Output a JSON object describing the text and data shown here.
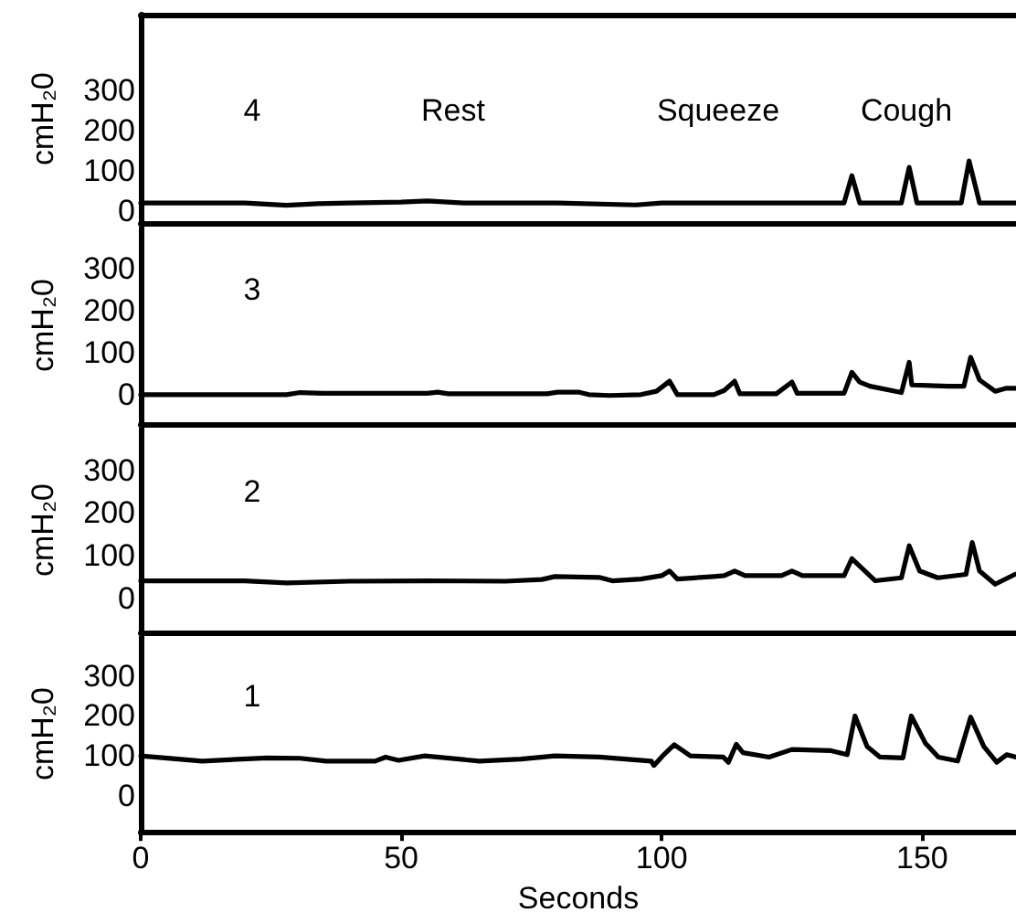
{
  "chart_data": [
    {
      "type": "line",
      "ylabel": "cmH₂0",
      "xlim": [
        0,
        168
      ],
      "ylim": [
        -30,
        490
      ],
      "yticks": [
        0,
        100,
        200,
        300
      ],
      "tick_labels": "y",
      "marker": "none",
      "line_style": "solid",
      "annotations": [
        "4",
        "Rest",
        "Squeeze",
        "Cough"
      ],
      "series": [
        {
          "color": "#000000",
          "x": [
            0,
            20,
            28,
            34,
            40,
            50,
            55,
            62,
            80,
            95,
            100,
            110,
            125,
            135,
            136.5,
            138,
            146,
            147.5,
            149,
            157.5,
            159,
            161,
            168
          ],
          "values": [
            20,
            20,
            14,
            18,
            20,
            22,
            25,
            20,
            20,
            15,
            20,
            20,
            20,
            20,
            88,
            20,
            20,
            109,
            20,
            20,
            125,
            20,
            20
          ]
        }
      ]
    },
    {
      "type": "line",
      "ylabel": "cmH₂0",
      "xlim": [
        0,
        168
      ],
      "ylim": [
        -70,
        400
      ],
      "yticks": [
        0,
        100,
        200,
        300
      ],
      "tick_labels": "y",
      "marker": "none",
      "line_style": "solid",
      "annotations": [
        "3"
      ],
      "series": [
        {
          "color": "#000000",
          "x": [
            0,
            28,
            30.6,
            35,
            55,
            57,
            59,
            78,
            80,
            84,
            86,
            90,
            96,
            99,
            101.5,
            103,
            110,
            112,
            114,
            115,
            122,
            125,
            126,
            135,
            136.5,
            138,
            140,
            146,
            147.5,
            148,
            155,
            158,
            159.3,
            161,
            164,
            166,
            168
          ],
          "values": [
            0,
            0,
            5,
            3,
            3,
            6,
            2,
            2,
            6,
            6,
            0,
            -2,
            0,
            8,
            32,
            0,
            0,
            10,
            32,
            2,
            2,
            30,
            3,
            3,
            53,
            30,
            20,
            5,
            77,
            23,
            20,
            20,
            89,
            35,
            8,
            15,
            15
          ]
        }
      ]
    },
    {
      "type": "line",
      "ylabel": "cmH₂0",
      "xlim": [
        0,
        168
      ],
      "ylim": [
        -80,
        400
      ],
      "yticks": [
        0,
        100,
        200,
        300
      ],
      "tick_labels": "y",
      "marker": "none",
      "line_style": "solid",
      "annotations": [
        "2"
      ],
      "series": [
        {
          "color": "#000000",
          "x": [
            0,
            20,
            28,
            40,
            55,
            70,
            77,
            79.5,
            88,
            90.5,
            96,
            100,
            101.5,
            103,
            110,
            112,
            114,
            116,
            123,
            125,
            127,
            135,
            136.5,
            141,
            146,
            147.5,
            149.5,
            153,
            158.4,
            159.6,
            161,
            164,
            167.8
          ],
          "values": [
            41,
            41,
            36,
            40,
            41,
            40,
            44,
            51,
            49,
            41,
            45,
            53,
            64,
            45,
            51,
            53,
            64,
            53,
            53,
            64,
            53,
            53,
            93,
            41,
            48,
            123,
            64,
            48,
            56,
            131,
            64,
            33,
            56
          ]
        }
      ]
    },
    {
      "type": "line",
      "ylabel": "cmH₂0",
      "xlabel": "Seconds",
      "xlim": [
        0,
        168
      ],
      "ylim": [
        -90,
        400
      ],
      "xticks": [
        0,
        50,
        100,
        150
      ],
      "yticks": [
        0,
        100,
        200,
        300
      ],
      "marker": "none",
      "line_style": "solid",
      "annotations": [
        "1"
      ],
      "series": [
        {
          "color": "#000000",
          "x": [
            0,
            11.8,
            24.3,
            30.6,
            35.6,
            45,
            47,
            49.5,
            54.5,
            65,
            73,
            79.5,
            88,
            98,
            98.5,
            100.4,
            102.4,
            105.5,
            111.8,
            112.8,
            114.3,
            115.6,
            120.6,
            125,
            132.5,
            135.6,
            137.1,
            139.4,
            141.9,
            146.3,
            147.9,
            150.6,
            153.1,
            156.8,
            159.3,
            161.8,
            164.3,
            166.2,
            168
          ],
          "values": [
            100,
            87,
            95,
            94,
            87,
            87,
            97,
            89,
            100,
            87,
            92,
            100,
            97,
            87,
            76,
            103,
            128,
            100,
            97,
            84,
            129,
            108,
            97,
            116,
            113,
            103,
            200,
            124,
            97,
            95,
            200,
            132,
            97,
            87,
            197,
            124,
            84,
            103,
            97
          ]
        }
      ]
    }
  ]
}
